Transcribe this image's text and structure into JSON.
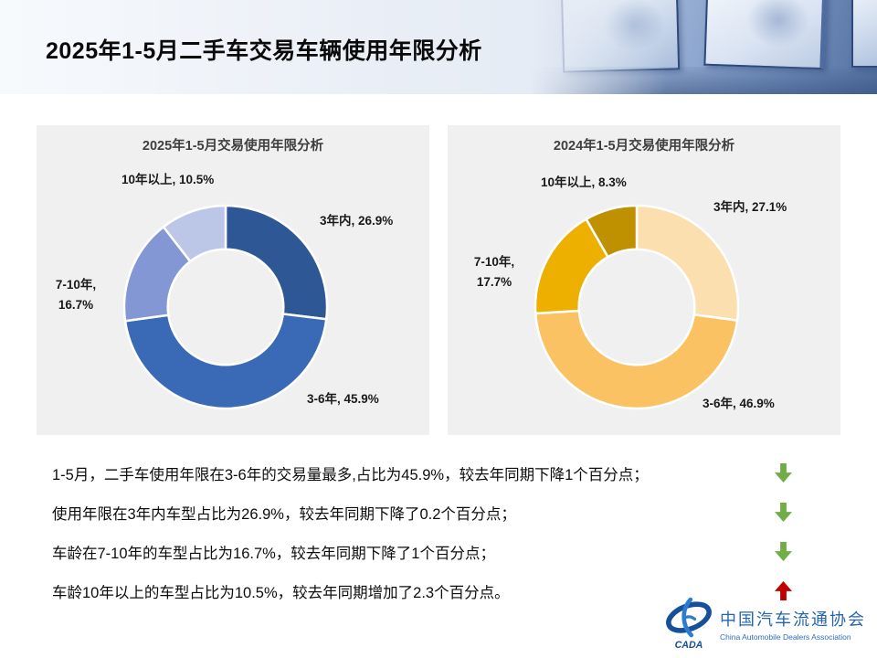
{
  "header": {
    "title": "2025年1-5月二手车交易车辆使用年限分析"
  },
  "chart_data": [
    {
      "type": "donut",
      "title": "2025年1-5月交易使用年限分析",
      "categories": [
        "3年内",
        "3-6年",
        "7-10年",
        "10年以上"
      ],
      "values": [
        26.9,
        45.9,
        16.7,
        10.5
      ],
      "unit": "%",
      "colors": [
        "#2e5795",
        "#3a6ab6",
        "#8297d3",
        "#bcc7e7"
      ],
      "inner_radius_ratio": 0.57,
      "start": "top-clockwise",
      "slice_labels": {
        "within3": "3年内, 26.9%",
        "y3_6": "3-6年, 45.9%",
        "y7_10_l1": "7-10年,",
        "y7_10_l2": "16.7%",
        "over10": "10年以上, 10.5%"
      }
    },
    {
      "type": "donut",
      "title": "2024年1-5月交易使用年限分析",
      "categories": [
        "3年内",
        "3-6年",
        "7-10年",
        "10年以上"
      ],
      "values": [
        27.1,
        46.9,
        17.7,
        8.3
      ],
      "unit": "%",
      "colors": [
        "#fbdfae",
        "#fac263",
        "#eeb000",
        "#bf9000"
      ],
      "inner_radius_ratio": 0.57,
      "start": "top-clockwise",
      "slice_labels": {
        "within3": "3年内, 27.1%",
        "y3_6": "3-6年, 46.9%",
        "y7_10_l1": "7-10年,",
        "y7_10_l2": "17.7%",
        "over10": "10年以上, 8.3%"
      }
    }
  ],
  "statements": [
    {
      "text": "1-5月，二手车使用年限在3-6年的交易量最多,占比为45.9%，较去年同期下降1个百分点；",
      "trend": "down"
    },
    {
      "text": "使用年限在3年内车型占比为26.9%，较去年同期下降了0.2个百分点；",
      "trend": "down"
    },
    {
      "text": "车龄在7-10年的车型占比为16.7%，较去年同期下降了1个百分点；",
      "trend": "down"
    },
    {
      "text": "车龄10年以上的车型占比为10.5%，较去年同期增加了2.3个百分点。",
      "trend": "up"
    }
  ],
  "footer": {
    "logo_acronym": "CADA",
    "org_cn": "中国汽车流通协会",
    "org_en": "China Automobile Dealers Association"
  },
  "colors": {
    "trend_down": "#70ad47",
    "trend_up": "#c00000",
    "logo_blue": "#1c55a0",
    "card_bg": "#f0f0f0"
  }
}
